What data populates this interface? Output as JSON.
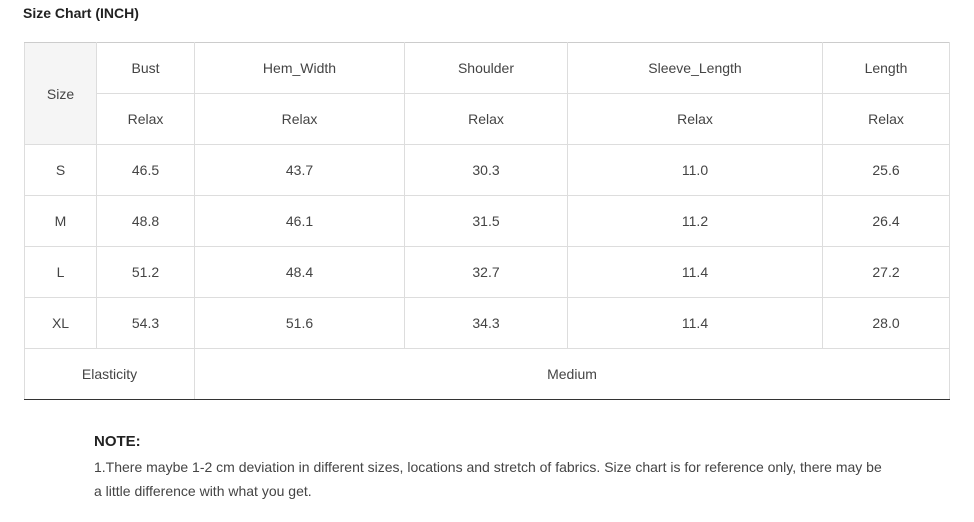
{
  "page": {
    "title": "Size Chart (INCH)"
  },
  "table": {
    "size_label": "Size",
    "columns": [
      "Bust",
      "Hem_Width",
      "Shoulder",
      "Sleeve_Length",
      "Length"
    ],
    "fit_labels": [
      "Relax",
      "Relax",
      "Relax",
      "Relax",
      "Relax"
    ],
    "rows": [
      {
        "size": "S",
        "values": [
          "46.5",
          "43.7",
          "30.3",
          "11.0",
          "25.6"
        ]
      },
      {
        "size": "M",
        "values": [
          "48.8",
          "46.1",
          "31.5",
          "11.2",
          "26.4"
        ]
      },
      {
        "size": "L",
        "values": [
          "51.2",
          "48.4",
          "32.7",
          "11.4",
          "27.2"
        ]
      },
      {
        "size": "XL",
        "values": [
          "54.3",
          "51.6",
          "34.3",
          "11.4",
          "28.0"
        ]
      }
    ],
    "elasticity_label": "Elasticity",
    "elasticity_value": "Medium"
  },
  "note": {
    "title": "NOTE:",
    "text": "1.There maybe 1-2 cm deviation in different sizes, locations and stretch of fabrics. Size chart is for reference only, there may be a little difference with what you get."
  },
  "colors": {
    "header_bg": "#f5f5f5",
    "border": "#dddddd",
    "bottom_border": "#333333"
  }
}
